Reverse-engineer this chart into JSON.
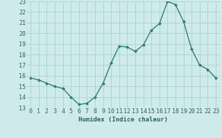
{
  "x": [
    0,
    1,
    2,
    3,
    4,
    5,
    6,
    7,
    8,
    9,
    10,
    11,
    12,
    13,
    14,
    15,
    16,
    17,
    18,
    19,
    20,
    21,
    22,
    23
  ],
  "y": [
    15.8,
    15.6,
    15.3,
    15.0,
    14.8,
    14.0,
    13.3,
    13.4,
    14.0,
    15.3,
    17.2,
    18.8,
    18.7,
    18.3,
    18.9,
    20.3,
    20.9,
    23.0,
    22.7,
    21.1,
    18.5,
    17.0,
    16.6,
    15.8
  ],
  "line_color": "#2e7d6e",
  "marker": "D",
  "marker_size": 2.0,
  "bg_color": "#ceeaea",
  "grid_color": "#aacece",
  "xlabel": "Humidex (Indice chaleur)",
  "ylim": [
    13,
    23
  ],
  "xlim": [
    -0.5,
    23.5
  ],
  "yticks": [
    13,
    14,
    15,
    16,
    17,
    18,
    19,
    20,
    21,
    22,
    23
  ],
  "xticks": [
    0,
    1,
    2,
    3,
    4,
    5,
    6,
    7,
    8,
    9,
    10,
    11,
    12,
    13,
    14,
    15,
    16,
    17,
    18,
    19,
    20,
    21,
    22,
    23
  ],
  "label_color": "#2e6060",
  "xlabel_fontsize": 6.5,
  "tick_fontsize": 6.0,
  "linewidth": 1.0
}
